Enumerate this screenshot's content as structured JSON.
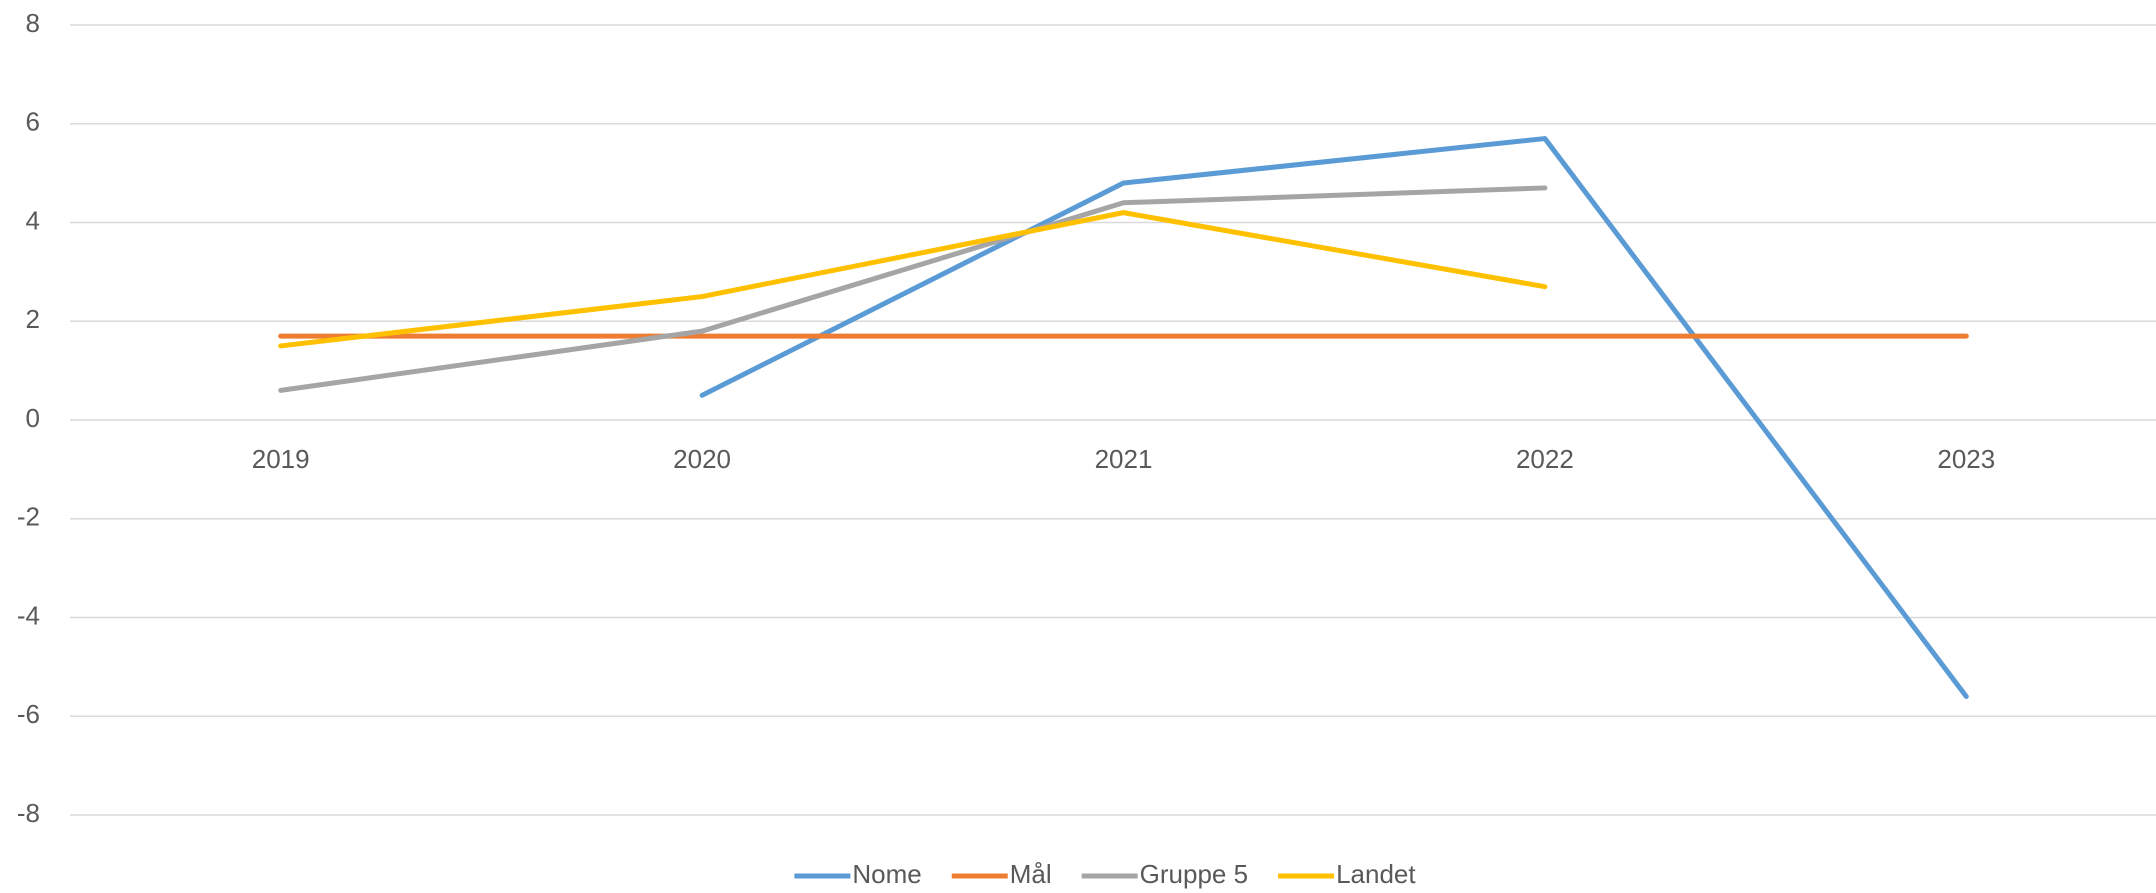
{
  "chart_data": {
    "type": "line",
    "categories": [
      "2019",
      "2020",
      "2021",
      "2022",
      "2023"
    ],
    "series": [
      {
        "name": "Nome",
        "color": "#5b9bd5",
        "values": [
          null,
          0.5,
          4.8,
          5.7,
          -5.6
        ]
      },
      {
        "name": "Mål",
        "color": "#ed7d31",
        "values": [
          1.7,
          1.7,
          1.7,
          1.7,
          1.7
        ]
      },
      {
        "name": "Gruppe 5",
        "color": "#a5a5a5",
        "values": [
          0.6,
          1.8,
          4.4,
          4.7,
          null
        ]
      },
      {
        "name": "Landet",
        "color": "#ffc000",
        "values": [
          1.5,
          2.5,
          4.2,
          2.7,
          null
        ]
      }
    ],
    "ylim": [
      -8,
      8
    ],
    "yticks": [
      -8,
      -6,
      -4,
      -2,
      0,
      2,
      4,
      6,
      8
    ],
    "grid": true,
    "legend": "bottom"
  }
}
